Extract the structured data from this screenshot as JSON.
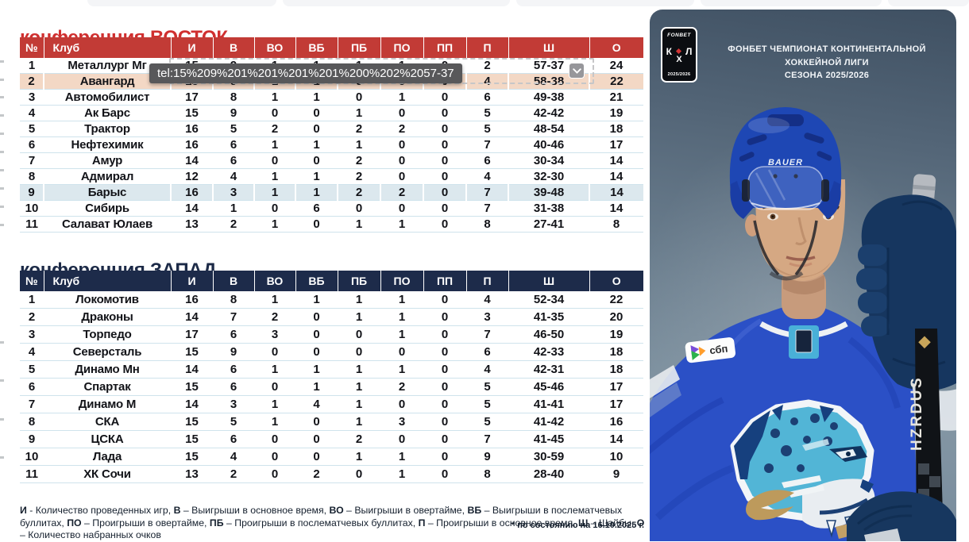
{
  "page": {
    "date_note": "* по состоянию на 16.10.2025 г."
  },
  "tooltip": {
    "text": "tel:15%209%201%201%201%201%200%202%2057-37"
  },
  "colors": {
    "east_header": "#c23b36",
    "east_title": "#d02f2f",
    "west_header": "#1d2b4a",
    "highlight_peach": "#f3d8c5",
    "highlight_blue": "#dce8ee",
    "row_separator": "#cfe3ec",
    "jersey_blue": "#2b50c6",
    "leopard_teal": "#52b5d6",
    "leopard_gold": "#bd9a5c"
  },
  "tables": [
    {
      "id": "east",
      "title": "конференция ВОСТОК",
      "headers": [
        "№",
        "Клуб",
        "И",
        "В",
        "ВО",
        "ВБ",
        "ПБ",
        "ПО",
        "ПП",
        "П",
        "Ш",
        "О"
      ],
      "rows": [
        {
          "pos": 1,
          "club": "Металлург Мг",
          "cells": [
            15,
            9,
            1,
            1,
            1,
            1,
            0,
            2,
            "57-37",
            24
          ],
          "highlight": null
        },
        {
          "pos": 2,
          "club": "Авангард",
          "cells": [
            15,
            9,
            1,
            1,
            0,
            0,
            0,
            4,
            "58-38",
            22
          ],
          "highlight": "peach"
        },
        {
          "pos": 3,
          "club": "Автомобилист",
          "cells": [
            17,
            8,
            1,
            1,
            0,
            1,
            0,
            6,
            "49-38",
            21
          ],
          "highlight": null
        },
        {
          "pos": 4,
          "club": "Ак Барс",
          "cells": [
            15,
            9,
            0,
            0,
            1,
            0,
            0,
            5,
            "42-42",
            19
          ],
          "highlight": null
        },
        {
          "pos": 5,
          "club": "Трактор",
          "cells": [
            16,
            5,
            2,
            0,
            2,
            2,
            0,
            5,
            "48-54",
            18
          ],
          "highlight": null
        },
        {
          "pos": 6,
          "club": "Нефтехимик",
          "cells": [
            16,
            6,
            1,
            1,
            1,
            0,
            0,
            7,
            "40-46",
            17
          ],
          "highlight": null
        },
        {
          "pos": 7,
          "club": "Амур",
          "cells": [
            14,
            6,
            0,
            0,
            2,
            0,
            0,
            6,
            "30-34",
            14
          ],
          "highlight": null
        },
        {
          "pos": 8,
          "club": "Адмирал",
          "cells": [
            12,
            4,
            1,
            1,
            2,
            0,
            0,
            4,
            "32-30",
            14
          ],
          "highlight": null
        },
        {
          "pos": 9,
          "club": "Барыс",
          "cells": [
            16,
            3,
            1,
            1,
            2,
            2,
            0,
            7,
            "39-48",
            14
          ],
          "highlight": "blue"
        },
        {
          "pos": 10,
          "club": "Сибирь",
          "cells": [
            14,
            1,
            0,
            6,
            0,
            0,
            0,
            7,
            "31-38",
            14
          ],
          "highlight": null
        },
        {
          "pos": 11,
          "club": "Салават Юлаев",
          "cells": [
            13,
            2,
            1,
            0,
            1,
            1,
            0,
            8,
            "27-41",
            8
          ],
          "highlight": null
        }
      ]
    },
    {
      "id": "west",
      "title": "конференция ЗАПАД",
      "headers": [
        "№",
        "Клуб",
        "И",
        "В",
        "ВО",
        "ВБ",
        "ПБ",
        "ПО",
        "ПП",
        "П",
        "Ш",
        "О"
      ],
      "rows": [
        {
          "pos": 1,
          "club": "Локомотив",
          "cells": [
            16,
            8,
            1,
            1,
            1,
            1,
            0,
            4,
            "52-34",
            22
          ],
          "highlight": null
        },
        {
          "pos": 2,
          "club": "Драконы",
          "cells": [
            14,
            7,
            2,
            0,
            1,
            1,
            0,
            3,
            "41-35",
            20
          ],
          "highlight": null
        },
        {
          "pos": 3,
          "club": "Торпедо",
          "cells": [
            17,
            6,
            3,
            0,
            0,
            1,
            0,
            7,
            "46-50",
            19
          ],
          "highlight": null
        },
        {
          "pos": 4,
          "club": "Северсталь",
          "cells": [
            15,
            9,
            0,
            0,
            0,
            0,
            0,
            6,
            "42-33",
            18
          ],
          "highlight": null
        },
        {
          "pos": 5,
          "club": "Динамо Мн",
          "cells": [
            14,
            6,
            1,
            1,
            1,
            1,
            0,
            4,
            "42-31",
            18
          ],
          "highlight": null
        },
        {
          "pos": 6,
          "club": "Спартак",
          "cells": [
            15,
            6,
            0,
            1,
            1,
            2,
            0,
            5,
            "45-46",
            17
          ],
          "highlight": null
        },
        {
          "pos": 7,
          "club": "Динамо М",
          "cells": [
            14,
            3,
            1,
            4,
            1,
            0,
            0,
            5,
            "41-41",
            17
          ],
          "highlight": null
        },
        {
          "pos": 8,
          "club": "СКА",
          "cells": [
            15,
            5,
            1,
            0,
            1,
            3,
            0,
            5,
            "41-42",
            16
          ],
          "highlight": null
        },
        {
          "pos": 9,
          "club": "ЦСКА",
          "cells": [
            15,
            6,
            0,
            0,
            2,
            0,
            0,
            7,
            "41-45",
            14
          ],
          "highlight": null
        },
        {
          "pos": 10,
          "club": "Лада",
          "cells": [
            15,
            4,
            0,
            0,
            1,
            1,
            0,
            9,
            "30-59",
            10
          ],
          "highlight": null
        },
        {
          "pos": 11,
          "club": "ХК Сочи",
          "cells": [
            13,
            2,
            0,
            2,
            0,
            1,
            0,
            8,
            "28-40",
            9
          ],
          "highlight": null
        }
      ]
    }
  ],
  "legend": [
    [
      "И",
      " - Количество проведенных игр, "
    ],
    [
      "В",
      " – Выигрыши в основное время, "
    ],
    [
      "ВО",
      " – Выигрыши в овертайме, "
    ],
    [
      "ВБ",
      " – Выигрыши в послематчевых буллитах, "
    ],
    [
      "ПО",
      " – Проигрыши в овертайме, "
    ],
    [
      "ПБ",
      " – Проигрыши в послематчевых буллитах, "
    ],
    [
      "П",
      " – Проигрыши в основное время, "
    ],
    [
      "Ш",
      " – Шайбы, "
    ],
    [
      "О",
      " – Количество набранных очков"
    ]
  ],
  "panel": {
    "badge": {
      "sponsor": "FONBET",
      "k": "К",
      "x": "Х",
      "l": "Л",
      "season": "2025/2026"
    },
    "caption_line1": "ФОНБЕТ ЧЕМПИОНАТ КОНТИНЕНТАЛЬНОЙ ХОККЕЙНОЙ ЛИГИ",
    "caption_line2": "СЕЗОНА 2025/2026",
    "helmet_brand": "BAUER",
    "stick_brand": "HZRDUS",
    "chest_patch": "сбп"
  }
}
